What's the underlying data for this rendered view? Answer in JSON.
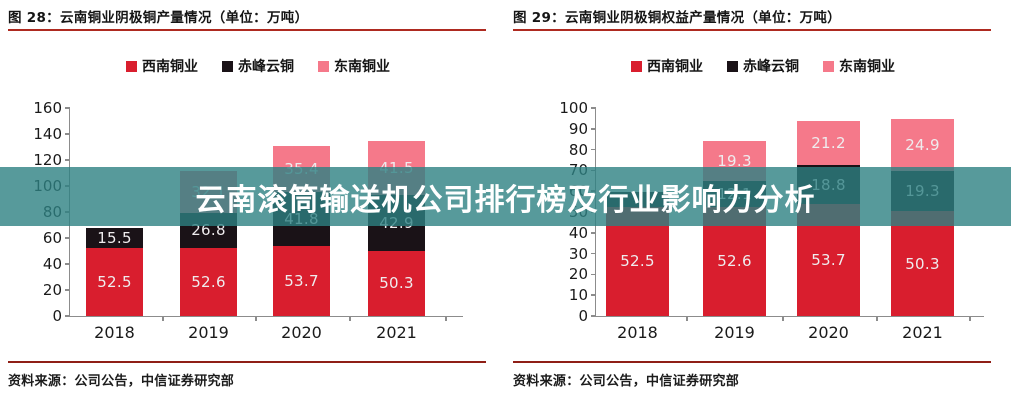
{
  "overlay": {
    "text": "云南滚筒输送机公司排行榜及行业影响力分析",
    "bg_color": "rgba(45,129,130,0.8)",
    "text_color": "#ffffff"
  },
  "chart_data": [
    {
      "type": "bar",
      "stacked": true,
      "title": "图 28：云南铜业阴极铜产量情况（单位：万吨）",
      "categories": [
        "2018",
        "2019",
        "2020",
        "2021"
      ],
      "series": [
        {
          "name": "西南铜业",
          "color": "#d91e2e",
          "values": [
            52.5,
            52.6,
            53.7,
            50.3
          ]
        },
        {
          "name": "赤峰云铜",
          "color": "#1a1217",
          "values": [
            15.5,
            26.8,
            41.8,
            42.9
          ]
        },
        {
          "name": "东南铜业",
          "color": "#f5798a",
          "values": [
            0,
            32.1,
            35.4,
            41.5
          ]
        }
      ],
      "ylim": [
        0,
        160
      ],
      "ytick_step": 20,
      "grid": false,
      "legend_position": "top",
      "source_note": "资料来源：公司公告，中信证券研究部"
    },
    {
      "type": "bar",
      "stacked": true,
      "title": "图 29：云南铜业阴极铜权益产量情况（单位：万吨）",
      "categories": [
        "2018",
        "2019",
        "2020",
        "2021"
      ],
      "series": [
        {
          "name": "西南铜业",
          "color": "#d91e2e",
          "values": [
            52.5,
            52.6,
            53.7,
            50.3
          ]
        },
        {
          "name": "赤峰云铜",
          "color": "#1a1217",
          "values": [
            7.0,
            12.1,
            18.8,
            19.3
          ]
        },
        {
          "name": "东南铜业",
          "color": "#f5798a",
          "values": [
            0,
            19.3,
            21.2,
            24.9
          ]
        }
      ],
      "ylim": [
        0,
        100
      ],
      "ytick_step": 10,
      "grid": false,
      "legend_position": "top",
      "source_note": "资料来源：公司公告，中信证券研究部"
    }
  ]
}
